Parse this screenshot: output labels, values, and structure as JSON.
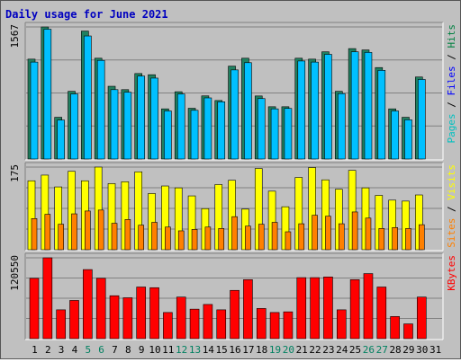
{
  "chart_data": {
    "type": "bar",
    "title": "Daily usage for June 2021",
    "days": [
      "1",
      "2",
      "3",
      "4",
      "5",
      "6",
      "7",
      "8",
      "9",
      "10",
      "11",
      "12",
      "13",
      "14",
      "15",
      "16",
      "17",
      "18",
      "19",
      "20",
      "21",
      "22",
      "23",
      "24",
      "25",
      "26",
      "27",
      "28",
      "29",
      "30",
      "31"
    ],
    "weekend_days": [
      "5",
      "6",
      "12",
      "13",
      "19",
      "20",
      "26",
      "27"
    ],
    "panels": [
      {
        "id": "hits-files-pages",
        "ymax": 1567,
        "ymax_label": "1567",
        "axis_legend": [
          {
            "text": "Pages",
            "color": "#00c0c0"
          },
          {
            "text": " / ",
            "color": "#000000"
          },
          {
            "text": "Files",
            "color": "#0000ff"
          },
          {
            "text": " / ",
            "color": "#000000"
          },
          {
            "text": "Hits",
            "color": "#008040"
          }
        ],
        "series": [
          {
            "key": "hits",
            "color": "#208060",
            "values": [
              1185,
              1567,
              495,
              803,
              1518,
              1196,
              863,
              823,
              1014,
              1000,
              595,
              798,
              602,
              749,
              694,
              1102,
              1196,
              748,
              620,
              620,
              1196,
              1185,
              1272,
              803,
              1310,
              1294,
              1085,
              595,
              495,
              973,
              0
            ]
          },
          {
            "key": "files",
            "color": "#00c0ff",
            "values": [
              1150,
              1540,
              462,
              772,
              1460,
              1170,
              823,
              792,
              984,
              960,
              570,
              771,
              578,
              725,
              679,
              1057,
              1143,
              717,
              595,
              600,
              1163,
              1150,
              1242,
              776,
              1272,
              1265,
              1052,
              570,
              465,
              944,
              0
            ]
          }
        ]
      },
      {
        "id": "visits-sites",
        "ymax": 175,
        "ymax_label": "175",
        "axis_legend": [
          {
            "text": "Sites",
            "color": "#ff8000"
          },
          {
            "text": " / ",
            "color": "#000000"
          },
          {
            "text": "Visits",
            "color": "#ffff00"
          }
        ],
        "series": [
          {
            "key": "visits",
            "color": "#ffff00",
            "values": [
              146,
              158,
              133,
              166,
              146,
              175,
              140,
              144,
              165,
              119,
              135,
              131,
              114,
              87,
              138,
              147,
              86,
              172,
              124,
              91,
              153,
              174,
              148,
              128,
              168,
              131,
              115,
              105,
              103,
              116,
              0
            ]
          },
          {
            "key": "sites",
            "color": "#ff8000",
            "values": [
              66,
              75,
              54,
              76,
              82,
              84,
              56,
              64,
              52,
              58,
              48,
              40,
              43,
              48,
              45,
              70,
              50,
              54,
              58,
              38,
              55,
              73,
              71,
              55,
              80,
              67,
              45,
              47,
              45,
              53,
              0
            ]
          }
        ]
      },
      {
        "id": "kbytes",
        "ymax": 120550,
        "ymax_label": "120550",
        "axis_legend": [
          {
            "text": "KBytes",
            "color": "#ff0000"
          }
        ],
        "series": [
          {
            "key": "kbytes",
            "color": "#ff0000",
            "values": [
              90000,
              120550,
              43000,
              57000,
              103000,
              90000,
              64000,
              61000,
              77000,
              76000,
              39000,
              62000,
              44000,
              51000,
              43000,
              72000,
              88000,
              45000,
              39000,
              40000,
              91000,
              91000,
              92000,
              43000,
              88000,
              97000,
              77000,
              33000,
              22000,
              62000,
              0
            ]
          }
        ]
      }
    ]
  }
}
